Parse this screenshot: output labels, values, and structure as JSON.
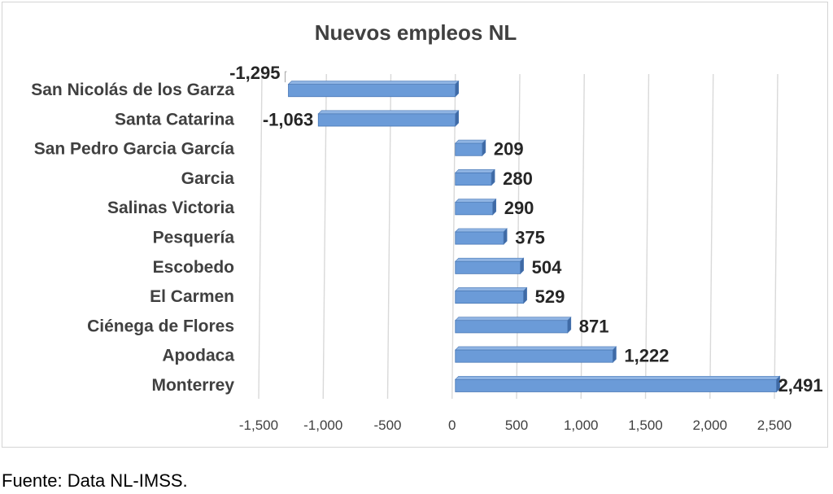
{
  "chart_data": {
    "type": "bar",
    "orientation": "horizontal",
    "title": "Nuevos empleos NL",
    "categories": [
      "San Nicolás de los Garza",
      "Santa Catarina",
      "San Pedro Garcia García",
      "Garcia",
      "Salinas Victoria",
      "Pesquería",
      "Escobedo",
      "El Carmen",
      "Ciénega de Flores",
      "Apodaca",
      "Monterrey"
    ],
    "values": [
      -1295,
      -1063,
      209,
      280,
      290,
      375,
      504,
      529,
      871,
      1222,
      2491
    ],
    "value_labels": [
      "-1,295",
      "-1,063",
      "209",
      "280",
      "290",
      "375",
      "504",
      "529",
      "871",
      "1,222",
      "2,491"
    ],
    "x_ticks": [
      "-1,500",
      "-1,000",
      "-500",
      "0",
      "500",
      "1,000",
      "1,500",
      "2,000",
      "2,500"
    ],
    "xlim": [
      -1500,
      2500
    ],
    "xlabel": "",
    "ylabel": "",
    "grid": true,
    "legend": "none",
    "colors": {
      "bar": "#6b9bd8",
      "bar_edge": "#4a78b5",
      "bar_side": "#3f6aa5",
      "grid": "#d9d9d9"
    }
  },
  "source_note": "Fuente: Data NL-IMSS."
}
